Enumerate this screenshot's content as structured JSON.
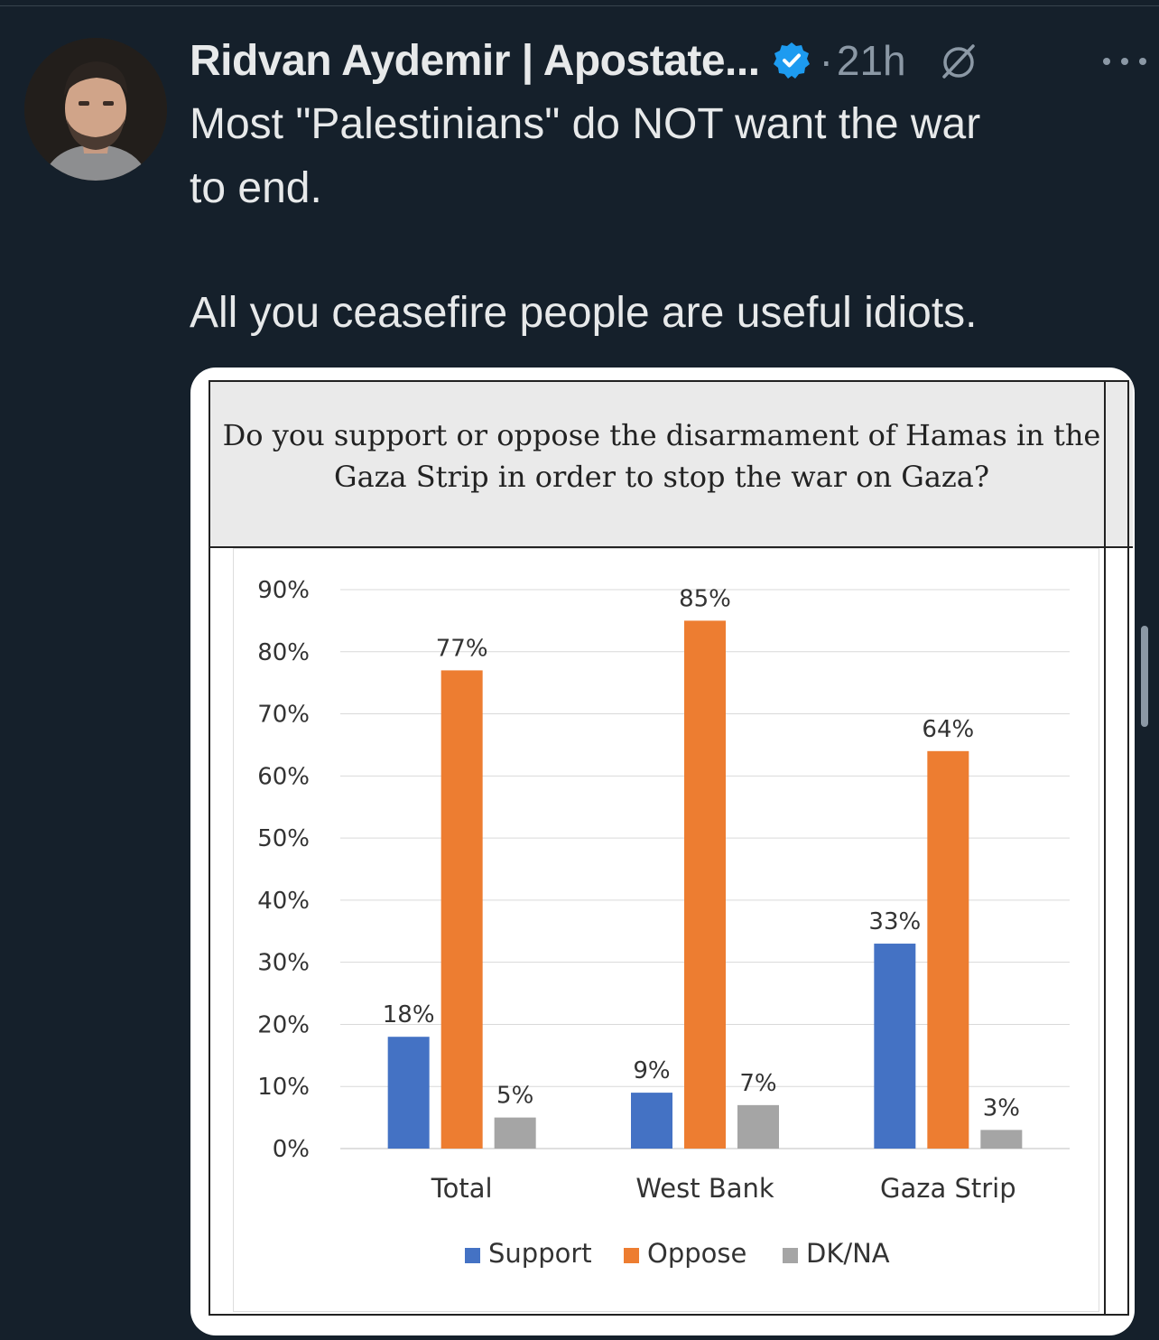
{
  "tweet": {
    "author_name": "Ridvan Aydemir | Apostate...",
    "time": "21h",
    "text_lines": [
      "Most \"Palestinians\" do NOT want the war",
      "to end.",
      "All you ceasefire people are useful idiots."
    ]
  },
  "colors": {
    "background": "#15202b",
    "verified": "#1d9bf0",
    "support": "#4472c4",
    "oppose": "#ed7d31",
    "dkna": "#a5a5a5"
  },
  "icons": {
    "verified": "verified-badge-icon",
    "grok": "grok-icon",
    "more": "more-icon"
  },
  "chart_title": "Do you support or oppose the disarmament of Hamas in the Gaza Strip in order to stop the war on Gaza?",
  "chart_data": {
    "type": "bar",
    "title": "Do you support or oppose the disarmament of Hamas in the Gaza Strip in order to stop the war on Gaza?",
    "categories": [
      "Total",
      "West Bank",
      "Gaza Strip"
    ],
    "series": [
      {
        "name": "Support",
        "values": [
          18,
          9,
          33
        ],
        "labels": [
          "18%",
          "9%",
          "33%"
        ]
      },
      {
        "name": "Oppose",
        "values": [
          77,
          85,
          64
        ],
        "labels": [
          "77%",
          "85%",
          "64%"
        ]
      },
      {
        "name": "DK/NA",
        "values": [
          5,
          7,
          3
        ],
        "labels": [
          "5%",
          "7%",
          "3%"
        ]
      }
    ],
    "ylim": [
      0,
      90
    ],
    "yticks": [
      "0%",
      "10%",
      "20%",
      "30%",
      "40%",
      "50%",
      "60%",
      "70%",
      "80%",
      "90%"
    ],
    "legend_position": "bottom",
    "grid": true
  }
}
